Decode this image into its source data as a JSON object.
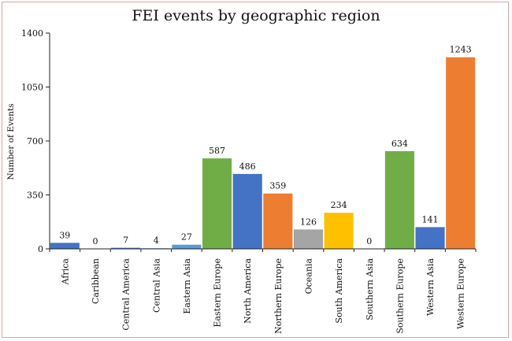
{
  "chart_data": {
    "type": "bar",
    "title": "FEI events by geographic region",
    "xlabel": "",
    "ylabel": "Number of Events",
    "ylim": [
      0,
      1400
    ],
    "yticks": [
      0,
      350,
      700,
      1050,
      1400
    ],
    "grid": false,
    "categories": [
      "Africa",
      "Caribbean",
      "Central America",
      "Central Asia",
      "Eastern Asia",
      "Eastern Europe",
      "North America",
      "Northern Europe",
      "Oceania",
      "South America",
      "Southern Asia",
      "Southern Europe",
      "Western Asia",
      "Western Europe"
    ],
    "values": [
      39,
      0,
      7,
      4,
      27,
      587,
      486,
      359,
      126,
      234,
      0,
      634,
      141,
      1243
    ],
    "colors": [
      "#4472c4",
      "#4472c4",
      "#4472c4",
      "#5b9bd5",
      "#5b9bd5",
      "#70ad47",
      "#4472c4",
      "#ed7d31",
      "#a5a5a5",
      "#ffc000",
      "#4472c4",
      "#70ad47",
      "#4472c4",
      "#ed7d31"
    ]
  }
}
